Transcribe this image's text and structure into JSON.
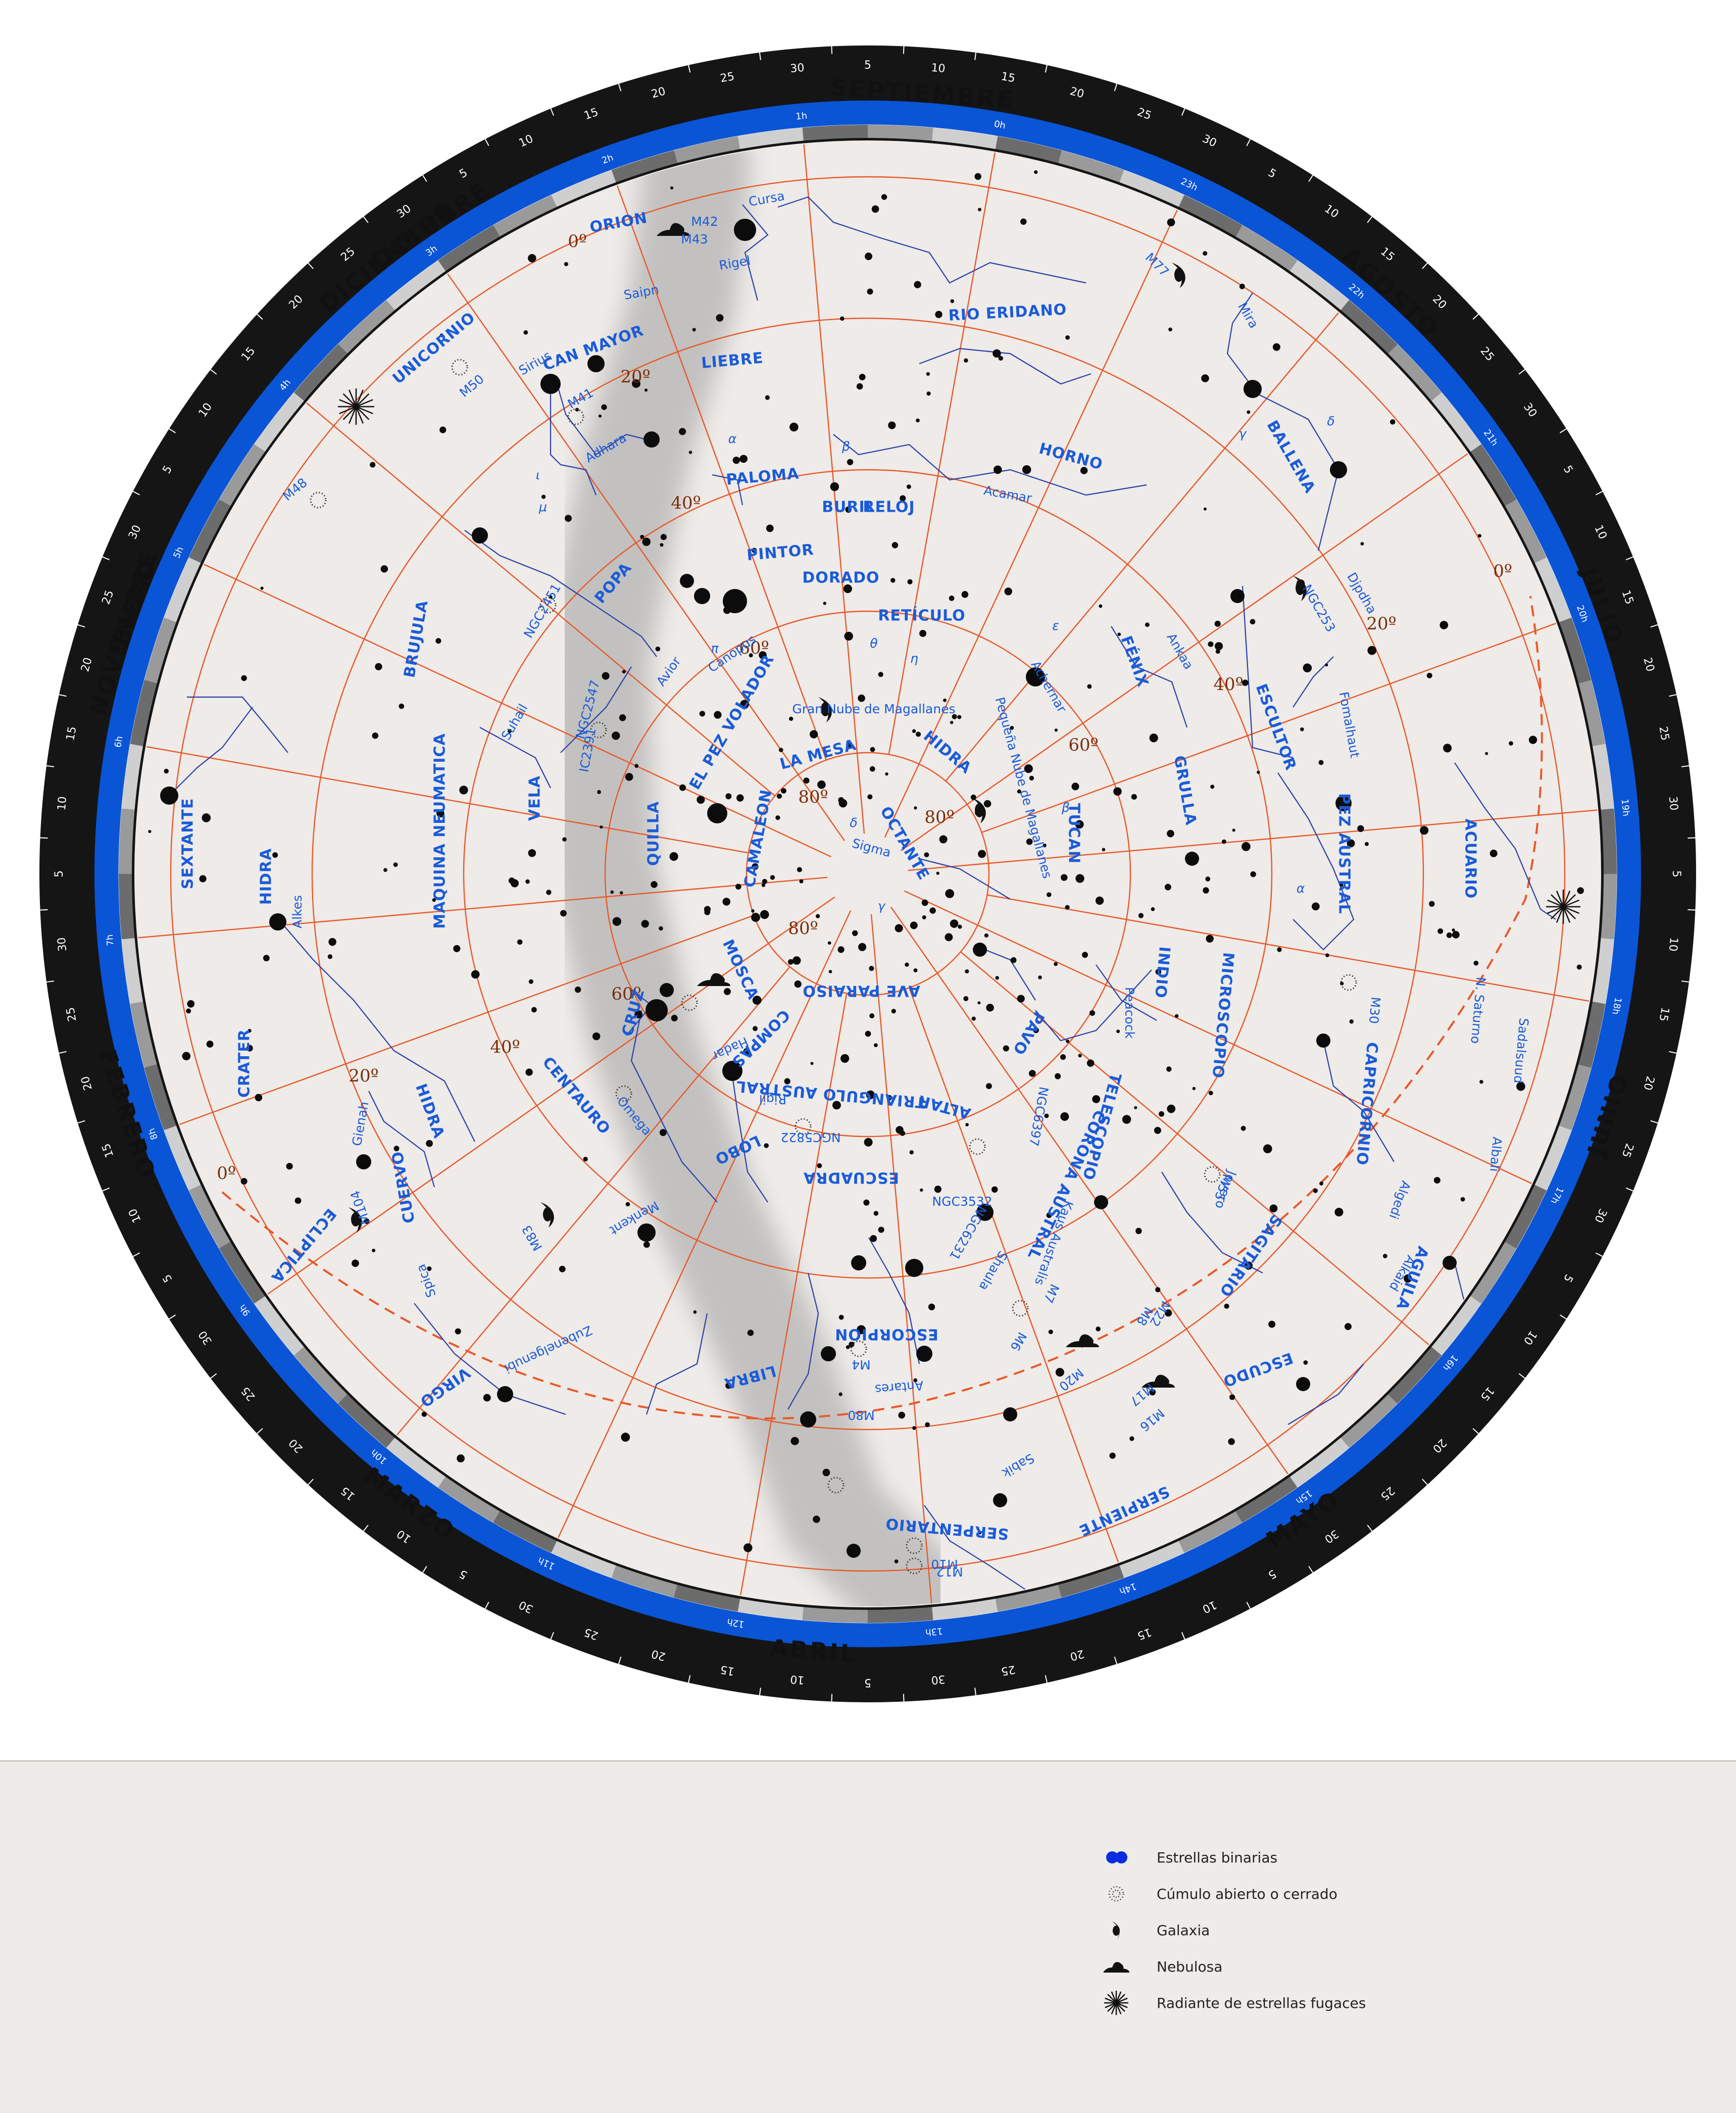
{
  "planisphere": {
    "months": [
      "NOVIEMBRE",
      "OCTUBRE",
      "SEPTIEMBRE",
      "AGOSTO",
      "JULIO",
      "JUNIO",
      "MAYO",
      "ABRIL",
      "MARZO",
      "FEBRERO",
      "ENERO",
      "DICIEMBRE"
    ],
    "day_ticks": [
      "5",
      "10",
      "15",
      "20",
      "25",
      "30"
    ],
    "hours": [
      "0h",
      "1h",
      "2h",
      "3h",
      "4h",
      "5h",
      "6h",
      "7h",
      "8h",
      "9h",
      "10h",
      "11h",
      "12h",
      "13h",
      "14h",
      "15h",
      "16h",
      "17h",
      "18h",
      "19h",
      "20h",
      "21h",
      "22h",
      "23h"
    ],
    "declinations": [
      "0º",
      "20º",
      "40º",
      "60º",
      "80º"
    ],
    "constellations": [
      "ORION",
      "LIEBRE",
      "RIO ERIDANO",
      "BALLENA",
      "HORNO",
      "UNICORNIO",
      "CAN MAYOR",
      "PALOMA",
      "BURIL",
      "RELOJ",
      "DORADO",
      "RETÍCULO",
      "PINTOR",
      "POPA",
      "BRUJULA",
      "SEXTANTE",
      "HIDRA",
      "MAQUINA NEUMATICA",
      "VELA",
      "QUILLA",
      "EL PEZ VOLADOR",
      "LA MESA",
      "CAMALEON",
      "OCTANTE",
      "HIDRA",
      "FÉNIX",
      "ESCULTOR",
      "GRULLA",
      "TUCAN",
      "PEZ AUSTRAL",
      "ACUARIO",
      "CRATER",
      "CUERVO",
      "HIDRA",
      "MOSCA",
      "CRUZ",
      "CENTAURO",
      "AVE PARAISO",
      "INDIO",
      "MICROSCOPIO",
      "CAPRICORNIO",
      "PAVO",
      "COMPAS",
      "TRIANGULO AUSTRAL",
      "ALTAR",
      "TELESCOPIO",
      "CORONA AUSTRAL",
      "SAGITARIO",
      "LOBO",
      "ESCUADRA",
      "ESCORPION",
      "LIBRA",
      "VIRGO",
      "ECLIPTICA",
      "ESCUDO",
      "SERPIENTE",
      "SERPENTARIO",
      "AGUILA"
    ],
    "stars": [
      "Cursa",
      "Rigel",
      "Saipn",
      "Sirius",
      "Adhara",
      "Mira",
      "Acamar",
      "Djpdha",
      "Canopus",
      "Suhail",
      "Avior",
      "Ankaa",
      "Achernar",
      "Fomalhaut",
      "Alkes",
      "Gienah",
      "Spica",
      "Zubenelgenubi",
      "Antares",
      "Sabik",
      "Shaula",
      "Kaus Australis",
      "Alkaid",
      "Albali",
      "Sadalsuud",
      "Peacock",
      "Rigil",
      "Hadar",
      "Menkent",
      "Sigma",
      "Algedi"
    ],
    "greek": [
      "α",
      "β",
      "γ",
      "δ",
      "ε",
      "η",
      "θ",
      "ι",
      "μ",
      "π"
    ],
    "deep_sky": [
      "M42",
      "M43",
      "M77",
      "M50",
      "M41",
      "M48",
      "NGC253",
      "NGC2451",
      "NGC2547",
      "IC2391",
      "Gran Nube de Magallanes",
      "Pequeña Nube de Magallanes",
      "M104",
      "M83",
      "Omega",
      "NGC5822",
      "NGC6397",
      "NGC6231",
      "NGC3532",
      "Joyero",
      "M30",
      "M55",
      "M6",
      "M7",
      "M8",
      "M22",
      "M20",
      "M17",
      "M16",
      "M80",
      "M4",
      "M10",
      "M12",
      "N. Saturno"
    ],
    "colors": {
      "ring_black": "#151515",
      "ring_blue": "#0a54d6",
      "field": "#eeebe8",
      "grid": "#e8582a",
      "label": "#1a5bd8",
      "milky_way": "#8f8f8f"
    }
  },
  "legend": {
    "items": [
      {
        "label": "Estrellas binarias",
        "icon": "binary-stars-icon"
      },
      {
        "label": "Cúmulo abierto o cerrado",
        "icon": "cluster-icon"
      },
      {
        "label": "Galaxia",
        "icon": "galaxy-icon"
      },
      {
        "label": "Nebulosa",
        "icon": "nebula-icon"
      },
      {
        "label": "Radiante de estrellas fugaces",
        "icon": "radiant-icon"
      }
    ]
  }
}
